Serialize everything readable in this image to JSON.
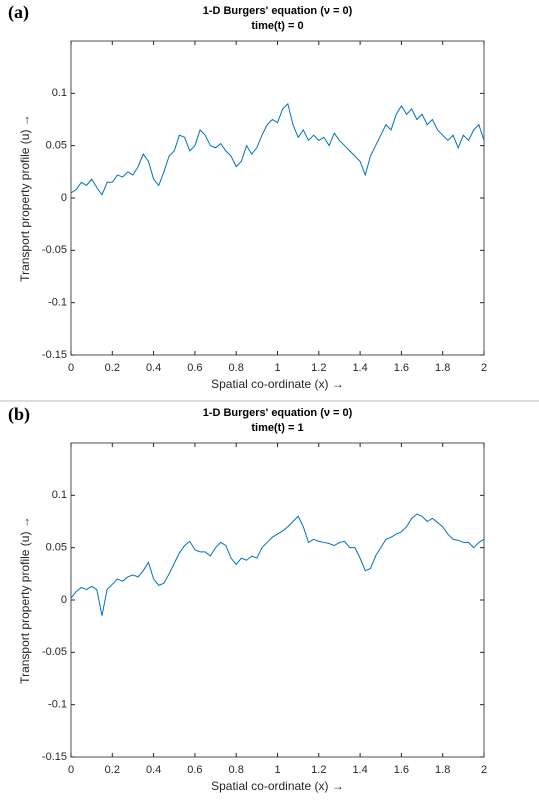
{
  "chart_data": [
    {
      "type": "line",
      "panel_label": "(a)",
      "title": "1-D Burgers' equation (ν = 0)",
      "subtitle": "time(t) = 0",
      "xlabel": "Spatial co-ordinate (x) →",
      "ylabel": "Transport property profile (u) →",
      "xlim": [
        0,
        2
      ],
      "ylim": [
        -0.15,
        0.15
      ],
      "xticks": [
        0,
        0.2,
        0.4,
        0.6,
        0.8,
        1,
        1.2,
        1.4,
        1.6,
        1.8,
        2
      ],
      "yticks": [
        -0.15,
        -0.1,
        -0.05,
        0,
        0.05,
        0.1
      ],
      "series": [
        {
          "color": "#0072bd",
          "x": [
            0,
            0.025,
            0.05,
            0.075,
            0.1,
            0.125,
            0.15,
            0.175,
            0.2,
            0.225,
            0.25,
            0.275,
            0.3,
            0.325,
            0.35,
            0.375,
            0.4,
            0.425,
            0.45,
            0.475,
            0.5,
            0.525,
            0.55,
            0.575,
            0.6,
            0.625,
            0.65,
            0.675,
            0.7,
            0.725,
            0.75,
            0.775,
            0.8,
            0.825,
            0.85,
            0.875,
            0.9,
            0.925,
            0.95,
            0.975,
            1,
            1.025,
            1.05,
            1.075,
            1.1,
            1.125,
            1.15,
            1.175,
            1.2,
            1.225,
            1.25,
            1.275,
            1.3,
            1.325,
            1.35,
            1.375,
            1.4,
            1.425,
            1.45,
            1.475,
            1.5,
            1.525,
            1.55,
            1.575,
            1.6,
            1.625,
            1.65,
            1.675,
            1.7,
            1.725,
            1.75,
            1.775,
            1.8,
            1.825,
            1.85,
            1.875,
            1.9,
            1.925,
            1.95,
            1.975,
            2
          ],
          "values": [
            0.005,
            0.008,
            0.015,
            0.012,
            0.018,
            0.01,
            0.003,
            0.015,
            0.015,
            0.022,
            0.02,
            0.025,
            0.022,
            0.03,
            0.042,
            0.035,
            0.018,
            0.012,
            0.025,
            0.04,
            0.045,
            0.06,
            0.058,
            0.045,
            0.05,
            0.065,
            0.06,
            0.05,
            0.048,
            0.052,
            0.045,
            0.04,
            0.03,
            0.035,
            0.05,
            0.042,
            0.048,
            0.06,
            0.07,
            0.075,
            0.072,
            0.085,
            0.09,
            0.07,
            0.058,
            0.065,
            0.055,
            0.06,
            0.055,
            0.058,
            0.05,
            0.062,
            0.055,
            0.05,
            0.045,
            0.04,
            0.035,
            0.022,
            0.04,
            0.05,
            0.06,
            0.07,
            0.065,
            0.08,
            0.088,
            0.08,
            0.085,
            0.075,
            0.08,
            0.07,
            0.075,
            0.065,
            0.06,
            0.055,
            0.06,
            0.048,
            0.06,
            0.055,
            0.065,
            0.07,
            0.055
          ]
        }
      ]
    },
    {
      "type": "line",
      "panel_label": "(b)",
      "title": "1-D Burgers' equation (ν = 0)",
      "subtitle": "time(t) = 1",
      "xlabel": "Spatial co-ordinate (x) →",
      "ylabel": "Transport property profile (u) →",
      "xlim": [
        0,
        2
      ],
      "ylim": [
        -0.15,
        0.15
      ],
      "xticks": [
        0,
        0.2,
        0.4,
        0.6,
        0.8,
        1,
        1.2,
        1.4,
        1.6,
        1.8,
        2
      ],
      "yticks": [
        -0.15,
        -0.1,
        -0.05,
        0,
        0.05,
        0.1
      ],
      "series": [
        {
          "color": "#0072bd",
          "x": [
            0,
            0.025,
            0.05,
            0.075,
            0.1,
            0.125,
            0.15,
            0.175,
            0.2,
            0.225,
            0.25,
            0.275,
            0.3,
            0.325,
            0.35,
            0.375,
            0.4,
            0.425,
            0.45,
            0.475,
            0.5,
            0.525,
            0.55,
            0.575,
            0.6,
            0.625,
            0.65,
            0.675,
            0.7,
            0.725,
            0.75,
            0.775,
            0.8,
            0.825,
            0.85,
            0.875,
            0.9,
            0.925,
            0.95,
            0.975,
            1,
            1.025,
            1.05,
            1.075,
            1.1,
            1.125,
            1.15,
            1.175,
            1.2,
            1.225,
            1.25,
            1.275,
            1.3,
            1.325,
            1.35,
            1.375,
            1.4,
            1.425,
            1.45,
            1.475,
            1.5,
            1.525,
            1.55,
            1.575,
            1.6,
            1.625,
            1.65,
            1.675,
            1.7,
            1.725,
            1.75,
            1.775,
            1.8,
            1.825,
            1.85,
            1.875,
            1.9,
            1.925,
            1.95,
            1.975,
            2
          ],
          "values": [
            0.002,
            0.008,
            0.012,
            0.01,
            0.013,
            0.01,
            -0.015,
            0.01,
            0.015,
            0.02,
            0.018,
            0.022,
            0.024,
            0.022,
            0.028,
            0.036,
            0.02,
            0.014,
            0.016,
            0.025,
            0.035,
            0.045,
            0.052,
            0.056,
            0.048,
            0.046,
            0.046,
            0.042,
            0.05,
            0.055,
            0.052,
            0.04,
            0.034,
            0.04,
            0.038,
            0.042,
            0.04,
            0.05,
            0.055,
            0.06,
            0.063,
            0.066,
            0.07,
            0.075,
            0.08,
            0.07,
            0.055,
            0.058,
            0.056,
            0.055,
            0.054,
            0.052,
            0.055,
            0.056,
            0.05,
            0.05,
            0.04,
            0.028,
            0.03,
            0.042,
            0.05,
            0.058,
            0.06,
            0.063,
            0.065,
            0.07,
            0.078,
            0.082,
            0.08,
            0.075,
            0.078,
            0.074,
            0.07,
            0.063,
            0.058,
            0.057,
            0.055,
            0.055,
            0.05,
            0.055,
            0.058
          ]
        }
      ]
    }
  ]
}
